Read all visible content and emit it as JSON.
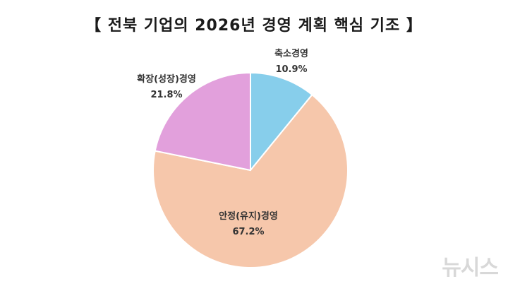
{
  "chart_data": {
    "type": "pie",
    "title": "【 전북 기업의 2026년 경영 계획 핵심 기조 】",
    "slices": [
      {
        "label": "축소경영",
        "value": 10.9,
        "value_label": "10.9%",
        "color": "#87ceeb"
      },
      {
        "label": "안정(유지)경영",
        "value": 67.2,
        "value_label": "67.2%",
        "color": "#f6c7ab"
      },
      {
        "label": "확장(성장)경영",
        "value": 21.8,
        "value_label": "21.8%",
        "color": "#e2a0dc"
      }
    ],
    "start_angle": "12 o'clock",
    "direction": "clockwise"
  },
  "watermark": "뉴시스"
}
